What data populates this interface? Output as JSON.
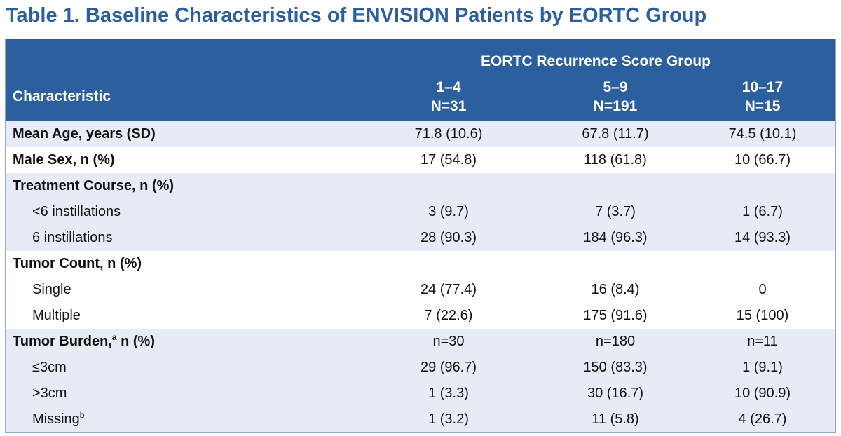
{
  "title": "Table 1. Baseline Characteristics of ENVISION Patients by EORTC Group",
  "header": {
    "group_label": "EORTC Recurrence Score Group",
    "characteristic_label": "Characteristic",
    "groups": [
      {
        "range": "1–4",
        "n": "N=31"
      },
      {
        "range": "5–9",
        "n": "N=191"
      },
      {
        "range": "10–17",
        "n": "N=15"
      }
    ]
  },
  "rows": [
    {
      "label": "Mean Age, years (SD)",
      "values": [
        "71.8 (10.6)",
        "67.8 (11.7)",
        "74.5 (10.1)"
      ]
    },
    {
      "label": "Male Sex, n (%)",
      "values": [
        "17 (54.8)",
        "118 (61.8)",
        "10 (66.7)"
      ]
    },
    {
      "label": "Treatment Course, n (%)",
      "values": [
        "",
        "",
        ""
      ]
    },
    {
      "label": "<6 instillations",
      "values": [
        "3 (9.7)",
        "7 (3.7)",
        "1 (6.7)"
      ]
    },
    {
      "label": "6 instillations",
      "values": [
        "28 (90.3)",
        "184 (96.3)",
        "14 (93.3)"
      ]
    },
    {
      "label": "Tumor Count, n (%)",
      "values": [
        "",
        "",
        ""
      ]
    },
    {
      "label": "Single",
      "values": [
        "24 (77.4)",
        "16 (8.4)",
        "0"
      ]
    },
    {
      "label": "Multiple",
      "values": [
        "7 (22.6)",
        "175 (91.6)",
        "15 (100)"
      ]
    },
    {
      "label": "Tumor Burden,",
      "sup": "a",
      "label_suffix": " n (%)",
      "values": [
        "n=30",
        "n=180",
        "n=11"
      ]
    },
    {
      "label": "≤3cm",
      "values": [
        "29 (96.7)",
        "150 (83.3)",
        "1 (9.1)"
      ]
    },
    {
      "label": ">3cm",
      "values": [
        "1 (3.3)",
        "30 (16.7)",
        "10 (90.9)"
      ]
    },
    {
      "label": "Missing",
      "sup": "b",
      "values": [
        "1 (3.2)",
        "11 (5.8)",
        "4 (26.7)"
      ]
    }
  ],
  "colors": {
    "header_bg": "#2c5f9e",
    "title": "#2c5f9e",
    "shaded_row": "#e6ebf5"
  }
}
